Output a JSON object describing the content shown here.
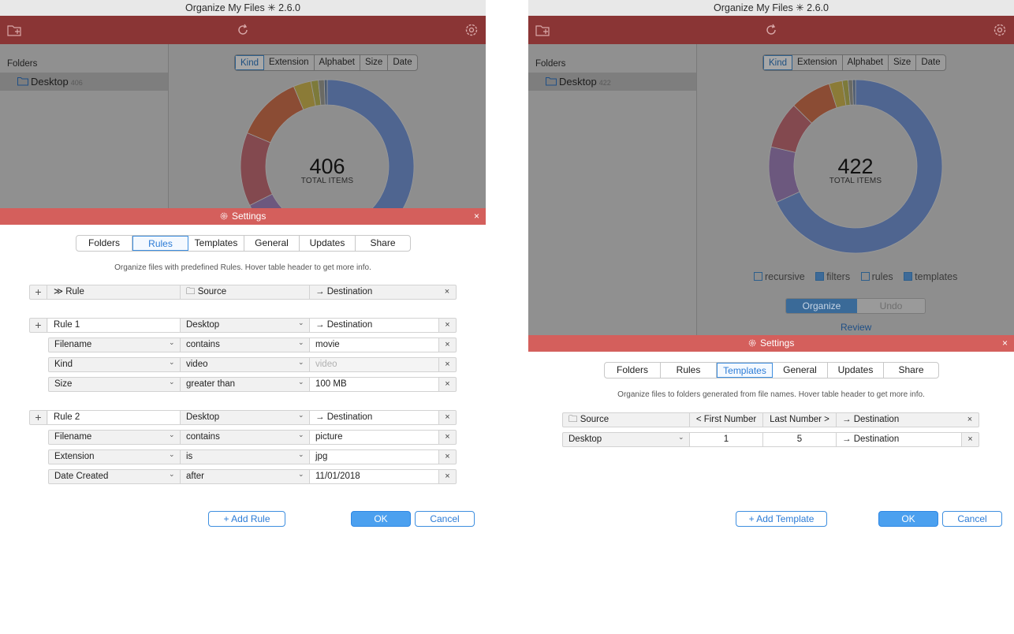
{
  "colors": {
    "toolbar": "#8a3535",
    "settings_bar": "#d45f5c",
    "accent": "#3e8fe0",
    "donut_main": "#4f6590"
  },
  "app": {
    "title": "Organize My Files ✳ 2.6.0",
    "toolbar_icons": [
      "new-folder-icon",
      "refresh-icon",
      "gear-icon"
    ]
  },
  "left": {
    "sidebar": {
      "heading": "Folders",
      "folder": {
        "name": "Desktop",
        "count": "406"
      }
    },
    "sort_tabs": [
      "Kind",
      "Extension",
      "Alphabet",
      "Size",
      "Date"
    ],
    "sort_active": "Kind",
    "chart": {
      "total": "406",
      "total_label": "TOTAL ITEMS"
    },
    "settings": {
      "title": "Settings",
      "close": "×",
      "tabs": [
        "Folders",
        "Rules",
        "Templates",
        "General",
        "Updates",
        "Share"
      ],
      "active_tab": "Rules",
      "hint": "Organize files with predefined Rules. Hover table header to get more info.",
      "header": {
        "plus": "+",
        "rule": "≫ Rule",
        "source": "🗀 Source",
        "destination": "→ Destination",
        "close": "×"
      },
      "rules": [
        {
          "name": "Rule 1",
          "source": "Desktop",
          "destination": "→ Destination",
          "conditions": [
            {
              "field": "Filename",
              "op": "contains",
              "value": "movie",
              "muted": false
            },
            {
              "field": "Kind",
              "op": "video",
              "value": "video",
              "muted": true
            },
            {
              "field": "Size",
              "op": "greater than",
              "value": "100 MB",
              "muted": false
            }
          ]
        },
        {
          "name": "Rule 2",
          "source": "Desktop",
          "destination": "→ Destination",
          "conditions": [
            {
              "field": "Filename",
              "op": "contains",
              "value": "picture",
              "muted": false
            },
            {
              "field": "Extension",
              "op": "is",
              "value": "jpg",
              "muted": false
            },
            {
              "field": "Date Created",
              "op": "after",
              "value": "11/01/2018",
              "muted": false
            }
          ]
        }
      ],
      "add_button": "+ Add Rule",
      "ok": "OK",
      "cancel": "Cancel"
    }
  },
  "right": {
    "sidebar": {
      "heading": "Folders",
      "folder": {
        "name": "Desktop",
        "count": "422"
      }
    },
    "sort_tabs": [
      "Kind",
      "Extension",
      "Alphabet",
      "Size",
      "Date"
    ],
    "sort_active": "Kind",
    "chart": {
      "total": "422",
      "total_label": "TOTAL ITEMS"
    },
    "options": [
      {
        "label": "recursive",
        "checked": false
      },
      {
        "label": "filters",
        "checked": true
      },
      {
        "label": "rules",
        "checked": false
      },
      {
        "label": "templates",
        "checked": true
      }
    ],
    "organize": "Organize",
    "undo": "Undo",
    "review": "Review",
    "settings": {
      "title": "Settings",
      "close": "×",
      "tabs": [
        "Folders",
        "Rules",
        "Templates",
        "General",
        "Updates",
        "Share"
      ],
      "active_tab": "Templates",
      "hint": "Organize files to folders generated from file names. Hover table header to get more info.",
      "header": {
        "source": "🗀 Source",
        "first": "< First Number",
        "last": "Last Number >",
        "destination": "→ Destination",
        "close": "×"
      },
      "row": {
        "source": "Desktop",
        "first": "1",
        "last": "5",
        "destination": "→ Destination",
        "close": "×"
      },
      "add_button": "+ Add Template",
      "ok": "OK",
      "cancel": "Cancel"
    }
  },
  "chart_data": [
    {
      "type": "pie",
      "title": "",
      "total": 406,
      "slices": [
        {
          "label": "",
          "value": 196,
          "color": "#4f6590"
        },
        {
          "label": "",
          "value": 50,
          "color": "#6c587e"
        },
        {
          "label": "",
          "value": 50,
          "color": "#83494f"
        },
        {
          "label": "",
          "value": 45,
          "color": "#8b4c34"
        },
        {
          "label": "",
          "value": 12,
          "color": "#8b7b37"
        },
        {
          "label": "",
          "value": 5,
          "color": "#7d7a3a"
        },
        {
          "label": "",
          "value": 4,
          "color": "#6a6a64"
        },
        {
          "label": "",
          "value": 2,
          "color": "#4b5a70"
        }
      ]
    },
    {
      "type": "pie",
      "title": "",
      "total": 422,
      "slices": [
        {
          "label": "",
          "value": 249,
          "color": "#4f6590"
        },
        {
          "label": "",
          "value": 38,
          "color": "#6c587e"
        },
        {
          "label": "",
          "value": 32,
          "color": "#83494f"
        },
        {
          "label": "",
          "value": 28,
          "color": "#8b4c34"
        },
        {
          "label": "",
          "value": 9,
          "color": "#8b7b37"
        },
        {
          "label": "",
          "value": 4,
          "color": "#7d7a3a"
        },
        {
          "label": "",
          "value": 3,
          "color": "#6a6a64"
        },
        {
          "label": "",
          "value": 2,
          "color": "#4b5a70"
        }
      ]
    }
  ]
}
